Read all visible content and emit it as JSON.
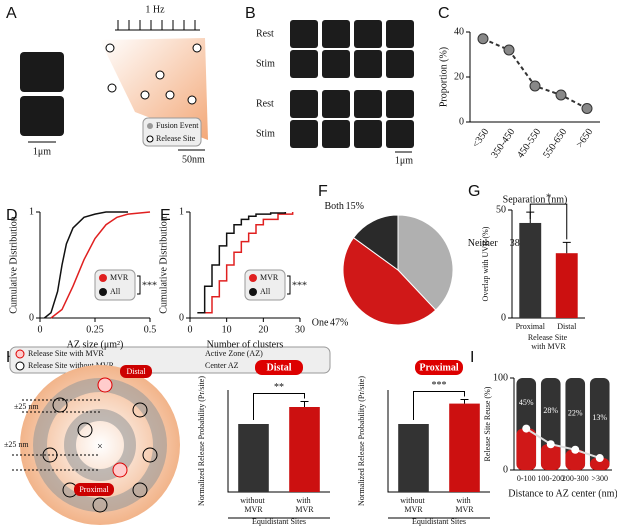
{
  "panels": [
    "A",
    "B",
    "C",
    "D",
    "E",
    "F",
    "G",
    "H",
    "I"
  ],
  "figure": {
    "a_frequency": "1 Hz",
    "a_scale_left": "1μm",
    "a_scale_right": "50nm",
    "a_legend": [
      "Fusion Event",
      "Release Site"
    ],
    "b_rows": [
      "Rest",
      "Stim",
      "Rest",
      "Stim"
    ],
    "b_scale": "1μm",
    "h_legend": [
      "Release Site with MVR",
      "Release Site without MVR",
      "Active Zone (AZ)",
      "Center AZ"
    ],
    "h_labels": [
      "Distal",
      "Proximal"
    ],
    "h_spacing": [
      "±25 nm",
      "±25 nm"
    ]
  },
  "chart_data": [
    {
      "type": "line",
      "categories": [
        "<350",
        "350-450",
        "450-550",
        "550-650",
        ">650"
      ],
      "values": [
        37,
        32,
        16,
        12,
        6
      ],
      "color": "#888888",
      "ylim": [
        0,
        40
      ],
      "yticks": [
        0,
        20,
        40
      ],
      "ylabel": "Proportion (%)",
      "xlabel": "Separation (nm)"
    },
    {
      "type": "line",
      "xlim": [
        0,
        0.5
      ],
      "xticks": [
        0,
        0.25,
        0.5
      ],
      "ylim": [
        0,
        1
      ],
      "yticks": [
        0,
        1
      ],
      "ylabel": "Cumulative Distribution",
      "xlabel": "AZ size (μm²)",
      "significance": "***",
      "series": [
        {
          "name": "MVR",
          "color": "#e02020",
          "x": [
            0.05,
            0.1,
            0.15,
            0.2,
            0.25,
            0.3,
            0.35,
            0.4,
            0.5
          ],
          "values": [
            0,
            0.08,
            0.3,
            0.55,
            0.75,
            0.88,
            0.95,
            0.98,
            1
          ]
        },
        {
          "name": "All",
          "color": "#111111",
          "x": [
            0.02,
            0.05,
            0.08,
            0.1,
            0.12,
            0.15,
            0.2,
            0.25,
            0.3,
            0.4
          ],
          "values": [
            0,
            0.05,
            0.25,
            0.5,
            0.7,
            0.85,
            0.95,
            0.98,
            1,
            1
          ]
        }
      ]
    },
    {
      "type": "line",
      "step": true,
      "xlim": [
        0,
        30
      ],
      "xticks": [
        0,
        10,
        20,
        30
      ],
      "ylim": [
        0,
        1
      ],
      "yticks": [
        0,
        1
      ],
      "ylabel": "Cumulative Distribution",
      "xlabel": "Number of clusters",
      "significance": "***",
      "series": [
        {
          "name": "MVR",
          "color": "#e02020",
          "x": [
            4,
            6,
            8,
            10,
            12,
            14,
            16,
            18,
            20,
            24,
            28
          ],
          "values": [
            0.05,
            0.2,
            0.35,
            0.5,
            0.62,
            0.72,
            0.8,
            0.88,
            0.93,
            0.98,
            1
          ]
        },
        {
          "name": "All",
          "color": "#111111",
          "x": [
            2,
            4,
            6,
            8,
            10,
            12,
            14,
            16,
            18,
            22,
            26
          ],
          "values": [
            0.05,
            0.3,
            0.5,
            0.68,
            0.8,
            0.88,
            0.93,
            0.96,
            0.98,
            0.99,
            1
          ]
        }
      ]
    },
    {
      "type": "pie",
      "categories": [
        "Neither",
        "One",
        "Both"
      ],
      "values": [
        38,
        47,
        15
      ],
      "value_labels": [
        "38%",
        "47%",
        "15%"
      ],
      "colors": [
        "#b0b0b0",
        "#d01818",
        "#2a2a2a"
      ]
    },
    {
      "type": "bar",
      "categories": [
        "Proximal",
        "Distal"
      ],
      "values": [
        44,
        30
      ],
      "errors": [
        5,
        5
      ],
      "colors": [
        "#333333",
        "#cc1010"
      ],
      "ylim": [
        0,
        50
      ],
      "yticks": [
        0,
        50
      ],
      "ylabel": "Overlap with UVR (%)",
      "xlabel": "Release Site with MVR",
      "significance": "*"
    },
    {
      "type": "bar",
      "title": "Distal",
      "categories": [
        "without MVR",
        "with MVR"
      ],
      "values": [
        1,
        1.25
      ],
      "errors": [
        0,
        0.08
      ],
      "colors": [
        "#333333",
        "#cc1010"
      ],
      "ylim": [
        0,
        1.5
      ],
      "ylabel": "Normalized Release Probability (Pr/site)",
      "xlabel": "Equidistant Sites",
      "significance": "**"
    },
    {
      "type": "bar",
      "title": "Proximal",
      "categories": [
        "without MVR",
        "with MVR"
      ],
      "values": [
        1,
        1.3
      ],
      "errors": [
        0,
        0.06
      ],
      "colors": [
        "#333333",
        "#cc1010"
      ],
      "ylim": [
        0,
        1.5
      ],
      "ylabel": "Normalized Release Probability (Pr/site)",
      "xlabel": "Equidistant Sites",
      "significance": "***"
    },
    {
      "type": "bar",
      "reuse": true,
      "categories": [
        "0-100",
        "100-200",
        "200-300",
        ">300"
      ],
      "values": [
        45,
        28,
        22,
        13
      ],
      "value_labels": [
        "45%",
        "28%",
        "22%",
        "13%"
      ],
      "colors": [
        "#d01818",
        "#d01818",
        "#d01818",
        "#d01818"
      ],
      "ylim": [
        0,
        100
      ],
      "yticks": [
        0,
        100
      ],
      "ylabel": "Release Site Reuse (%)",
      "xlabel": "Distance to AZ center (nm)"
    }
  ]
}
